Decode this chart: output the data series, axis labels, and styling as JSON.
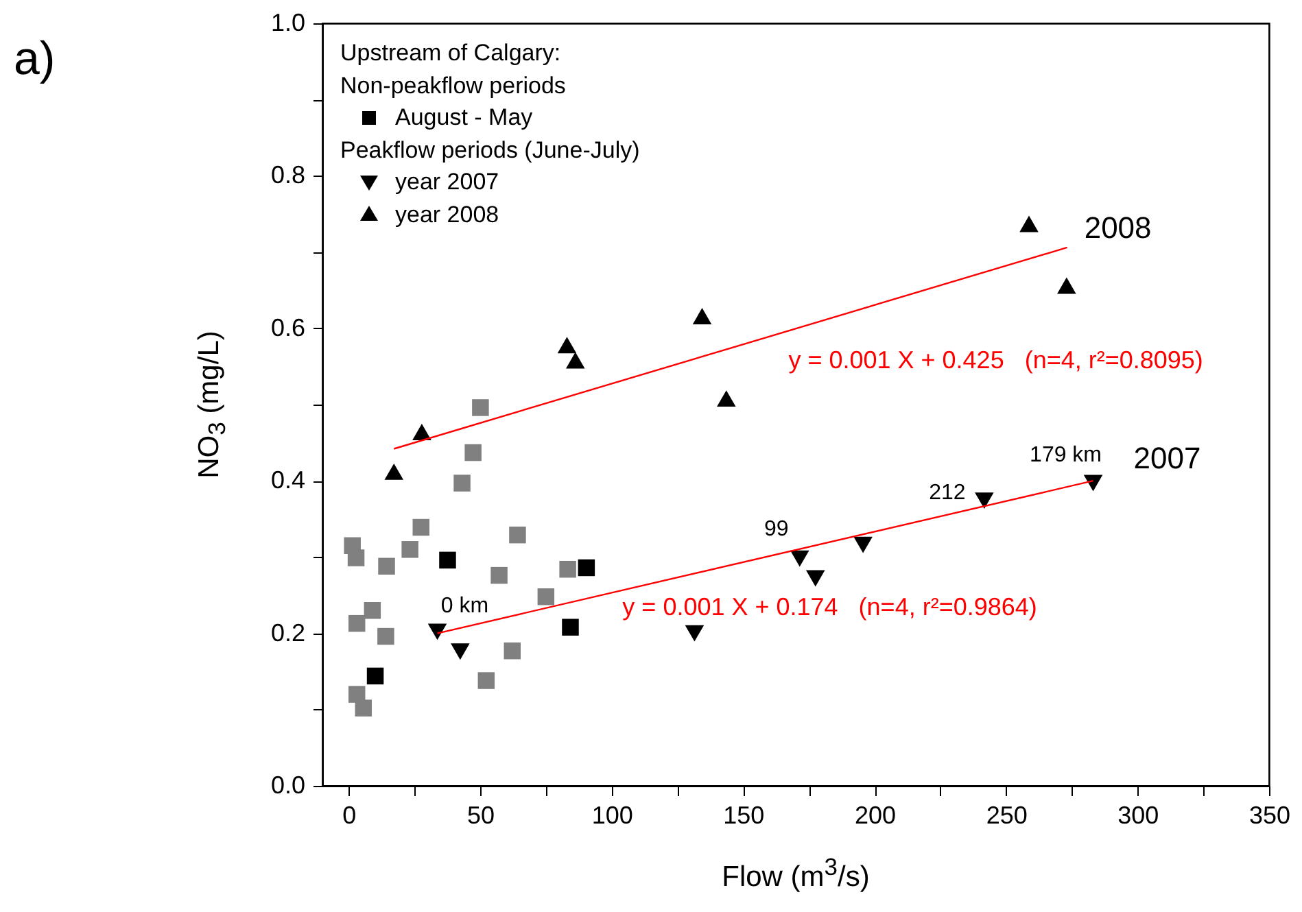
{
  "chart_data": {
    "type": "scatter",
    "xlabel": "Flow (m$^{3}$/s)",
    "ylabel": "NO$_{3}$ (mg/L)",
    "legend_title": "Upstream of Calgary:",
    "legend": "top left",
    "grid": false,
    "xlim": [
      -10,
      350
    ],
    "xticks": [
      0,
      {
        "value": 25,
        "label": null
      },
      50,
      {
        "value": 75,
        "label": null
      },
      100,
      {
        "value": 125,
        "label": null
      },
      150,
      {
        "value": 175,
        "label": null
      },
      200,
      {
        "value": 225,
        "label": null
      },
      250,
      {
        "value": 275,
        "label": null
      },
      300,
      {
        "value": 325,
        "label": null
      },
      350
    ],
    "ylim": [
      0,
      1
    ],
    "yticks": [
      {
        "value": 0,
        "label": "0.0"
      },
      {
        "value": 0.1,
        "label": null
      },
      0.2,
      {
        "value": 0.3,
        "label": null
      },
      0.4,
      {
        "value": 0.5,
        "label": null
      },
      0.6,
      {
        "value": 0.7,
        "label": null
      },
      0.8,
      {
        "value": 0.9,
        "label": null
      },
      {
        "value": 1,
        "label": "1.0"
      }
    ],
    "series": [
      {
        "type": "scatter",
        "marker": "square",
        "color": "#808080",
        "x": [
          50.1,
          47.3,
          43.1,
          27.5,
          1.4,
          2.8,
          23.3,
          14.4,
          64.2,
          57.2,
          83.3,
          75,
          9,
          3.1,
          14.1,
          62.2,
          52.3,
          3.1,
          5.6
        ],
        "values": [
          0.496,
          0.437,
          0.397,
          0.339,
          0.315,
          0.299,
          0.31,
          0.288,
          0.329,
          0.276,
          0.284,
          0.248,
          0.23,
          0.213,
          0.196,
          0.177,
          0.138,
          0.12,
          0.102
        ]
      },
      {
        "type": "scatter",
        "marker": "square",
        "name": "August - May",
        "color": "#000000",
        "x": [
          37.6,
          90.4,
          84.3,
          10.1
        ],
        "values": [
          0.296,
          0.286,
          0.208,
          0.144
        ]
      },
      {
        "type": "scatter",
        "marker": "triangle-down",
        "name": "year 2007",
        "color": "#000000",
        "x": [
          33.7,
          42.4,
          131.5,
          171.5,
          177.5,
          195.6,
          241.7,
          283.1
        ],
        "values": [
          0.202,
          0.176,
          0.2,
          0.298,
          0.272,
          0.316,
          0.374,
          0.397
        ]
      },
      {
        "type": "scatter",
        "marker": "triangle",
        "name": "year 2008",
        "color": "#000000",
        "x": [
          17.2,
          27.8,
          83,
          86.2,
          134.4,
          143.6,
          258.7,
          273
        ],
        "values": [
          0.412,
          0.464,
          0.578,
          0.558,
          0.616,
          0.508,
          0.737,
          0.656
        ]
      },
      {
        "type": "line",
        "color": "#ff0000",
        "x": [
          33.7,
          283.1
        ],
        "values": [
          0.2,
          0.4
        ]
      },
      {
        "type": "line",
        "color": "#ff0000",
        "x": [
          17.2,
          273.2
        ],
        "values": [
          0.442,
          0.706
        ]
      }
    ],
    "annotations": [
      "a)",
      "Non-peakflow periods",
      "Peakflow periods (June-July)",
      "y = 0.001 X + 0.425   (n=4, r²=0.8095)",
      "y = 0.001 X + 0.174   (n=4, r²=0.9864)",
      {
        "text": "0 km",
        "x": 33.7,
        "y": 0.202
      },
      {
        "text": "99",
        "x": 171.5,
        "y": 0.298
      },
      {
        "text": "212",
        "x": 241.7,
        "y": 0.374
      },
      {
        "text": "179 km",
        "x": 283.1,
        "y": 0.397
      },
      {
        "text": "2008",
        "x": 273.2,
        "y": 0.706
      },
      {
        "text": "2007",
        "x": 283.1,
        "y": 0.4
      }
    ]
  }
}
